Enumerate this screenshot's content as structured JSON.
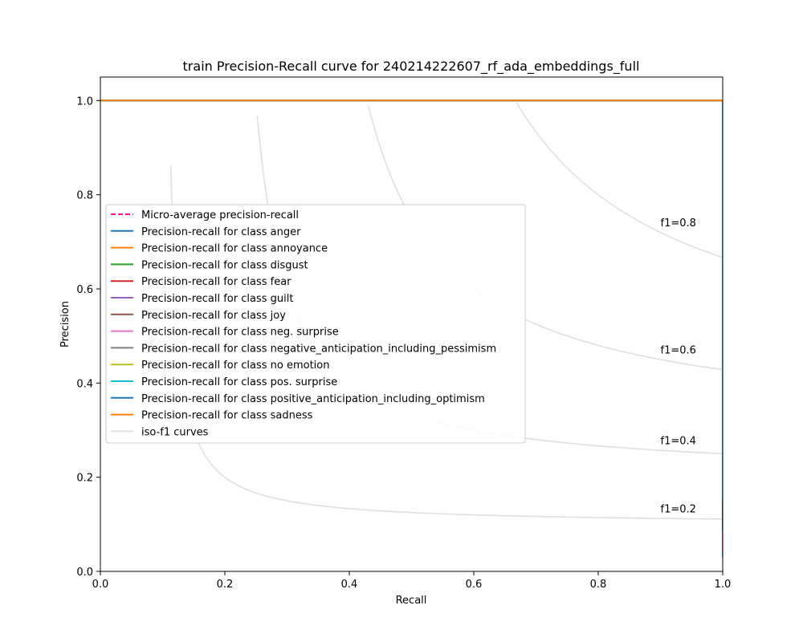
{
  "chart_data": {
    "type": "line",
    "title": "train Precision-Recall curve for 240214222607_rf_ada_embeddings_full",
    "xlabel": "Recall",
    "ylabel": "Precision",
    "xlim": [
      0.0,
      1.0
    ],
    "ylim": [
      0.0,
      1.05
    ],
    "x_ticks": [
      "0.0",
      "0.2",
      "0.4",
      "0.6",
      "0.8",
      "1.0"
    ],
    "y_ticks": [
      "0.0",
      "0.2",
      "0.4",
      "0.6",
      "0.8",
      "1.0"
    ],
    "grid": false,
    "legend_position": "center-left",
    "iso_f1": [
      {
        "f1": 0.2,
        "label": "f1=0.2"
      },
      {
        "f1": 0.4,
        "label": "f1=0.4"
      },
      {
        "f1": 0.6,
        "label": "f1=0.6"
      },
      {
        "f1": 0.8,
        "label": "f1=0.8"
      }
    ],
    "series": [
      {
        "name": "Micro-average precision-recall",
        "color": "#ff1493",
        "dashed": true,
        "recall": [
          0.0,
          1.0,
          1.0
        ],
        "precision": [
          1.0,
          1.0,
          0.083
        ]
      },
      {
        "name": "Precision-recall for class anger",
        "color": "#1f77b4",
        "recall": [
          0.0,
          1.0,
          1.0
        ],
        "precision": [
          1.0,
          1.0,
          0.09
        ]
      },
      {
        "name": "Precision-recall for class annoyance",
        "color": "#ff7f0e",
        "recall": [
          0.0,
          1.0,
          1.0
        ],
        "precision": [
          1.0,
          1.0,
          0.1
        ]
      },
      {
        "name": "Precision-recall for class disgust",
        "color": "#2ca02c",
        "recall": [
          0.0,
          1.0,
          1.0
        ],
        "precision": [
          1.0,
          1.0,
          0.06
        ]
      },
      {
        "name": "Precision-recall for class fear",
        "color": "#d62728",
        "recall": [
          0.0,
          1.0,
          1.0
        ],
        "precision": [
          1.0,
          1.0,
          0.07
        ]
      },
      {
        "name": "Precision-recall for class guilt",
        "color": "#9467bd",
        "recall": [
          0.0,
          1.0,
          1.0
        ],
        "precision": [
          1.0,
          1.0,
          0.03
        ]
      },
      {
        "name": "Precision-recall for class joy",
        "color": "#8c564b",
        "recall": [
          0.0,
          1.0,
          1.0
        ],
        "precision": [
          1.0,
          1.0,
          0.08
        ]
      },
      {
        "name": "Precision-recall for class neg. surprise",
        "color": "#e377c2",
        "recall": [
          0.0,
          1.0,
          1.0
        ],
        "precision": [
          1.0,
          1.0,
          0.04
        ]
      },
      {
        "name": "Precision-recall for class negative_anticipation_including_pessimism",
        "color": "#7f7f7f",
        "recall": [
          0.0,
          1.0,
          1.0
        ],
        "precision": [
          1.0,
          1.0,
          0.05
        ]
      },
      {
        "name": "Precision-recall for class no emotion",
        "color": "#bcbd22",
        "recall": [
          0.0,
          1.0,
          1.0
        ],
        "precision": [
          1.0,
          1.0,
          0.09
        ]
      },
      {
        "name": "Precision-recall for class pos. surprise",
        "color": "#17becf",
        "recall": [
          0.0,
          1.0,
          1.0
        ],
        "precision": [
          1.0,
          1.0,
          0.03
        ]
      },
      {
        "name": "Precision-recall for class positive_anticipation_including_optimism",
        "color": "#1f77b4",
        "recall": [
          0.0,
          1.0,
          1.0
        ],
        "precision": [
          1.0,
          1.0,
          0.09
        ]
      },
      {
        "name": "Precision-recall for class sadness",
        "color": "#ff7f0e",
        "recall": [
          0.0,
          1.0,
          1.0
        ],
        "precision": [
          1.0,
          1.0,
          0.15
        ]
      }
    ],
    "iso_legend_label": "iso-f1 curves",
    "iso_color": "#e0e0e0"
  }
}
